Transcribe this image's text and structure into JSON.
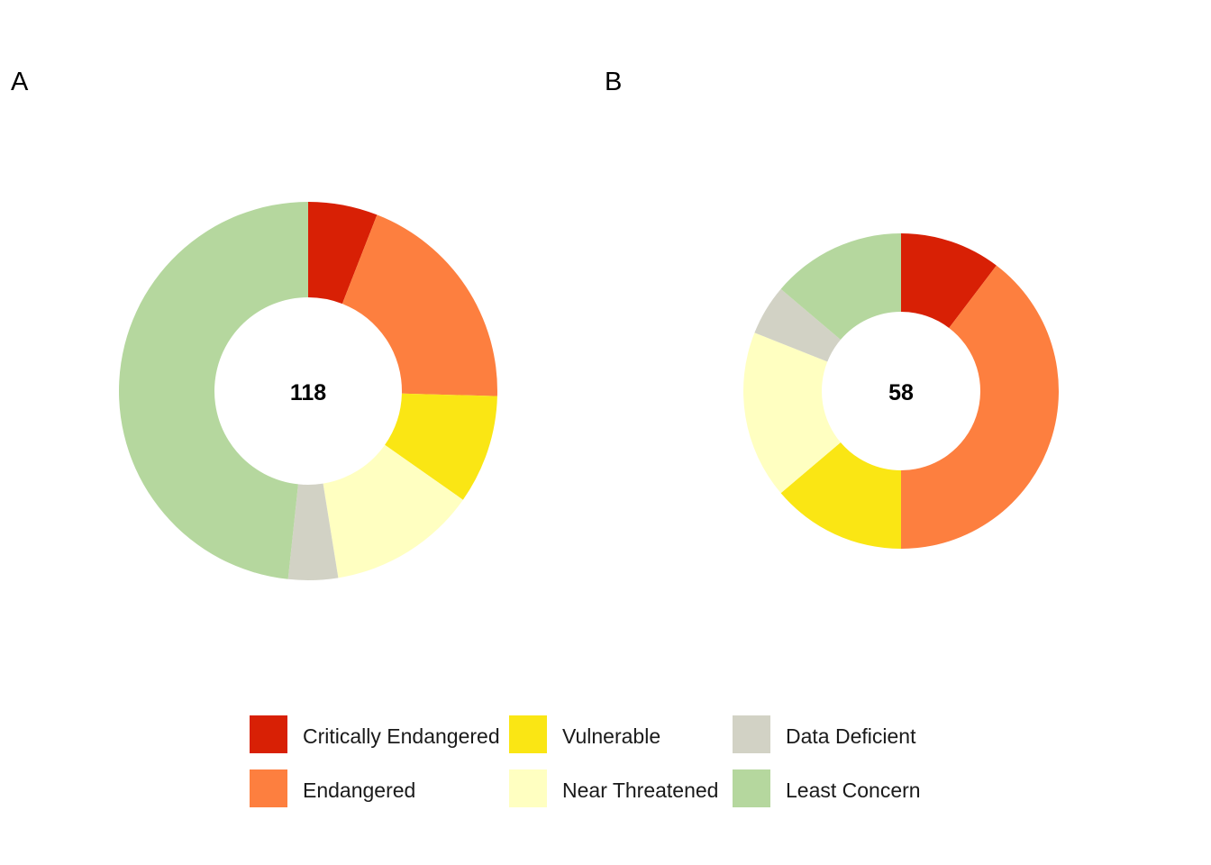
{
  "colors": {
    "Critically Endangered": "#d82005",
    "Endangered": "#fd7f3f",
    "Vulnerable": "#fae614",
    "Near Threatened": "#ffffc1",
    "Data Deficient": "#d2d2c5",
    "Least Concern": "#b5d79e"
  },
  "legend": {
    "items": [
      "Critically Endangered",
      "Endangered",
      "Vulnerable",
      "Near Threatened",
      "Data Deficient",
      "Least Concern"
    ]
  },
  "chart_data": [
    {
      "type": "pie",
      "panel": "A",
      "center_label": "118",
      "categories": [
        "Critically Endangered",
        "Endangered",
        "Vulnerable",
        "Near Threatened",
        "Data Deficient",
        "Least Concern"
      ],
      "values": [
        7,
        23,
        11,
        15,
        5,
        57
      ]
    },
    {
      "type": "pie",
      "panel": "B",
      "center_label": "58",
      "categories": [
        "Critically Endangered",
        "Endangered",
        "Vulnerable",
        "Near Threatened",
        "Data Deficient",
        "Least Concern"
      ],
      "values": [
        6,
        23,
        8,
        10,
        3,
        8
      ]
    }
  ]
}
